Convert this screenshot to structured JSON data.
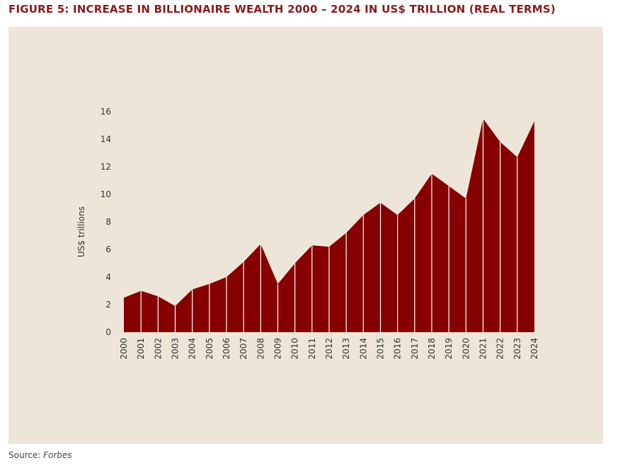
{
  "chart_data": {
    "type": "area",
    "title": "FIGURE 5: INCREASE IN BILLIONAIRE WEALTH 2000 – 2024 IN US$ TRILLION (REAL TERMS)",
    "y_label": "US$ trillions",
    "categories": [
      "2000",
      "2001",
      "2002",
      "2003",
      "2004",
      "2005",
      "2006",
      "2007",
      "2008",
      "2009",
      "2010",
      "2011",
      "2012",
      "2013",
      "2014",
      "2015",
      "2016",
      "2017",
      "2018",
      "2019",
      "2020",
      "2021",
      "2022",
      "2023",
      "2024"
    ],
    "values": [
      2.5,
      3.0,
      2.6,
      1.9,
      3.1,
      3.5,
      4.0,
      5.1,
      6.4,
      3.5,
      5.0,
      6.3,
      6.2,
      7.2,
      8.5,
      9.4,
      8.5,
      9.7,
      11.5,
      10.6,
      9.7,
      15.5,
      13.8,
      12.7,
      15.3
    ],
    "color": "#860000",
    "ylim": [
      0,
      16
    ],
    "yticks": [
      0,
      2,
      4,
      6,
      8,
      10,
      12,
      14,
      16
    ],
    "grid": false,
    "source_label": "Source:",
    "source": "Forbes"
  }
}
